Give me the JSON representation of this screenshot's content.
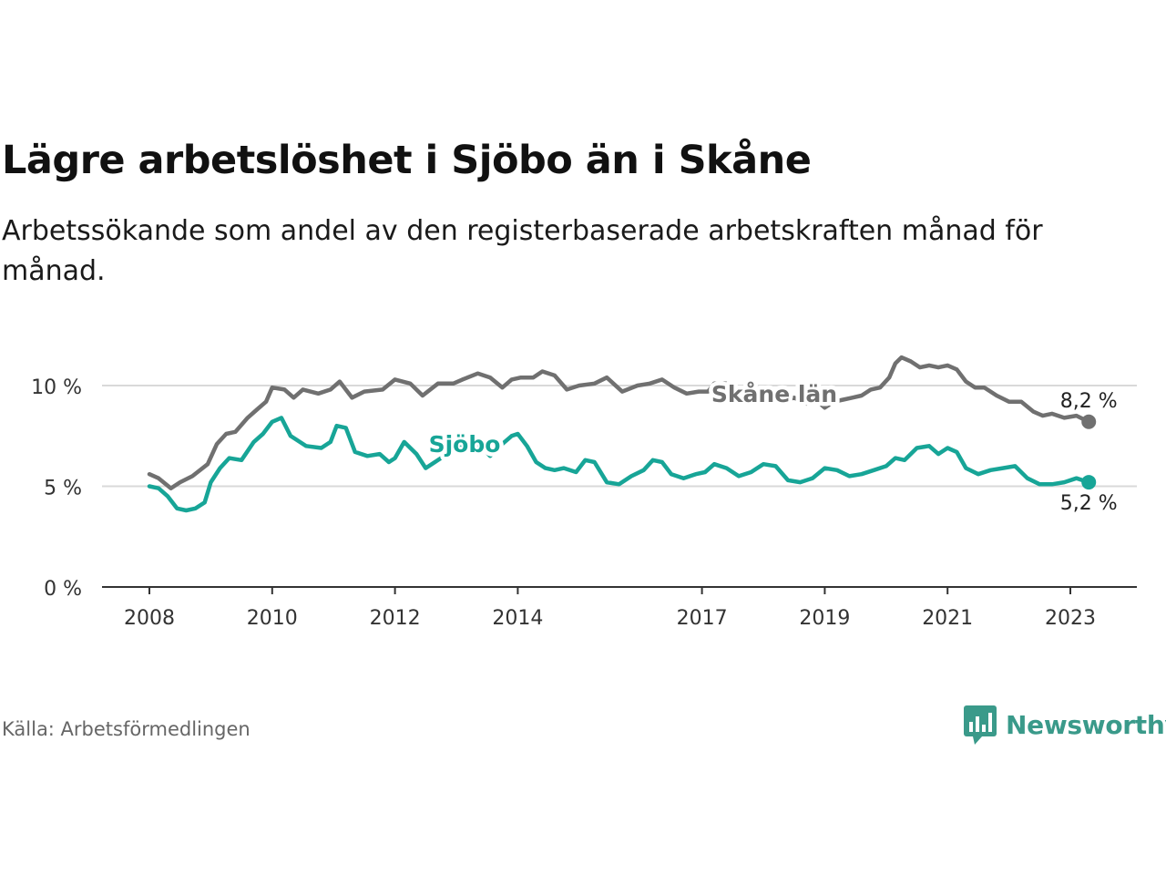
{
  "title": "Lägre arbetslöshet i Sjöbo än i Skåne",
  "subtitle": "Arbetssökande som andel av den registerbaserade arbetskraften månad för månad.",
  "source": "Källa: Arbetsförmedlingen",
  "brand": {
    "name": "Newsworthy",
    "icon": "newsworthy-logo-icon",
    "color": "#3a9a8a"
  },
  "colors": {
    "skane": "#707070",
    "sjobo": "#17a597",
    "grid": "#d9d9d9",
    "axis": "#333333"
  },
  "chart_data": {
    "type": "line",
    "title": "Lägre arbetslöshet i Sjöbo än i Skåne",
    "xlabel": "",
    "ylabel": "",
    "ylim": [
      0,
      12
    ],
    "y_ticks": [
      {
        "value": 0,
        "label": "0 %"
      },
      {
        "value": 5,
        "label": "5 %"
      },
      {
        "value": 10,
        "label": "10 %"
      }
    ],
    "x_ticks": [
      {
        "value": 2008.0,
        "label": "2008"
      },
      {
        "value": 2010.0,
        "label": "2010"
      },
      {
        "value": 2012.0,
        "label": "2012"
      },
      {
        "value": 2014.0,
        "label": "2014"
      },
      {
        "value": 2017.0,
        "label": "2017"
      },
      {
        "value": 2019.0,
        "label": "2019"
      },
      {
        "value": 2021.0,
        "label": "2021"
      },
      {
        "value": 2023.0,
        "label": "2023"
      }
    ],
    "x_range": [
      2007.3,
      2024.2
    ],
    "grid": true,
    "series": [
      {
        "name": "Skåne län",
        "color": "#707070",
        "end_label": "8,2 %",
        "x": [
          2008.0,
          2008.15,
          2008.35,
          2008.5,
          2008.7,
          2008.95,
          2009.1,
          2009.25,
          2009.4,
          2009.6,
          2009.75,
          2009.9,
          2010.0,
          2010.2,
          2010.35,
          2010.5,
          2010.75,
          2010.95,
          2011.1,
          2011.3,
          2011.5,
          2011.8,
          2012.0,
          2012.25,
          2012.45,
          2012.7,
          2012.95,
          2013.1,
          2013.35,
          2013.55,
          2013.75,
          2013.9,
          2014.05,
          2014.25,
          2014.4,
          2014.6,
          2014.8,
          2015.0,
          2015.25,
          2015.45,
          2015.7,
          2015.95,
          2016.15,
          2016.35,
          2016.55,
          2016.75,
          2016.95,
          2017.1,
          2017.2,
          2017.4,
          2017.6,
          2017.85,
          2018.1,
          2018.3,
          2018.5,
          2018.7,
          2018.85,
          2019.0,
          2019.15,
          2019.3,
          2019.45,
          2019.6,
          2019.75,
          2019.9,
          2020.05,
          2020.15,
          2020.25,
          2020.4,
          2020.55,
          2020.7,
          2020.85,
          2021.0,
          2021.15,
          2021.3,
          2021.45,
          2021.6,
          2021.8,
          2022.0,
          2022.2,
          2022.4,
          2022.55,
          2022.7,
          2022.9,
          2023.1,
          2023.3
        ],
        "values": [
          5.6,
          5.4,
          4.9,
          5.2,
          5.5,
          6.1,
          7.1,
          7.6,
          7.7,
          8.4,
          8.8,
          9.2,
          9.9,
          9.8,
          9.4,
          9.8,
          9.6,
          9.8,
          10.2,
          9.4,
          9.7,
          9.8,
          10.3,
          10.1,
          9.5,
          10.1,
          10.1,
          10.3,
          10.6,
          10.4,
          9.9,
          10.3,
          10.4,
          10.4,
          10.7,
          10.5,
          9.8,
          10.0,
          10.1,
          10.4,
          9.7,
          10.0,
          10.1,
          10.3,
          9.9,
          9.6,
          9.7,
          9.7,
          10.1,
          10.1,
          9.4,
          9.6,
          9.7,
          9.2,
          9.4,
          9.1,
          9.3,
          8.9,
          9.2,
          9.3,
          9.4,
          9.5,
          9.8,
          9.9,
          10.4,
          11.1,
          11.4,
          11.2,
          10.9,
          11.0,
          10.9,
          11.0,
          10.8,
          10.2,
          9.9,
          9.9,
          9.5,
          9.2,
          9.2,
          8.7,
          8.5,
          8.6,
          8.4,
          8.5,
          8.2
        ]
      },
      {
        "name": "Sjöbo",
        "color": "#17a597",
        "end_label": "5,2 %",
        "x": [
          2008.0,
          2008.15,
          2008.3,
          2008.45,
          2008.6,
          2008.75,
          2008.9,
          2009.0,
          2009.15,
          2009.3,
          2009.5,
          2009.7,
          2009.85,
          2010.0,
          2010.15,
          2010.3,
          2010.55,
          2010.8,
          2010.95,
          2011.05,
          2011.2,
          2011.35,
          2011.55,
          2011.75,
          2011.9,
          2012.0,
          2012.15,
          2012.35,
          2012.5,
          2012.7,
          2012.9,
          2013.1,
          2013.3,
          2013.55,
          2013.75,
          2013.9,
          2014.0,
          2014.15,
          2014.3,
          2014.45,
          2014.6,
          2014.75,
          2014.95,
          2015.1,
          2015.25,
          2015.45,
          2015.65,
          2015.85,
          2016.05,
          2016.2,
          2016.35,
          2016.5,
          2016.7,
          2016.9,
          2017.05,
          2017.2,
          2017.4,
          2017.6,
          2017.8,
          2018.0,
          2018.2,
          2018.4,
          2018.6,
          2018.8,
          2019.0,
          2019.2,
          2019.4,
          2019.6,
          2019.8,
          2020.0,
          2020.15,
          2020.3,
          2020.5,
          2020.7,
          2020.85,
          2021.0,
          2021.15,
          2021.3,
          2021.5,
          2021.7,
          2021.9,
          2022.1,
          2022.3,
          2022.5,
          2022.7,
          2022.9,
          2023.1,
          2023.3
        ],
        "values": [
          5.0,
          4.9,
          4.5,
          3.9,
          3.8,
          3.9,
          4.2,
          5.2,
          5.9,
          6.4,
          6.3,
          7.2,
          7.6,
          8.2,
          8.4,
          7.5,
          7.0,
          6.9,
          7.2,
          8.0,
          7.9,
          6.7,
          6.5,
          6.6,
          6.2,
          6.4,
          7.2,
          6.6,
          5.9,
          6.3,
          6.7,
          7.0,
          7.3,
          6.5,
          7.1,
          7.5,
          7.6,
          7.0,
          6.2,
          5.9,
          5.8,
          5.9,
          5.7,
          6.3,
          6.2,
          5.2,
          5.1,
          5.5,
          5.8,
          6.3,
          6.2,
          5.6,
          5.4,
          5.6,
          5.7,
          6.1,
          5.9,
          5.5,
          5.7,
          6.1,
          6.0,
          5.3,
          5.2,
          5.4,
          5.9,
          5.8,
          5.5,
          5.6,
          5.8,
          6.0,
          6.4,
          6.3,
          6.9,
          7.0,
          6.6,
          6.9,
          6.7,
          5.9,
          5.6,
          5.8,
          5.9,
          6.0,
          5.4,
          5.1,
          5.1,
          5.2,
          5.4,
          5.2
        ]
      }
    ]
  }
}
